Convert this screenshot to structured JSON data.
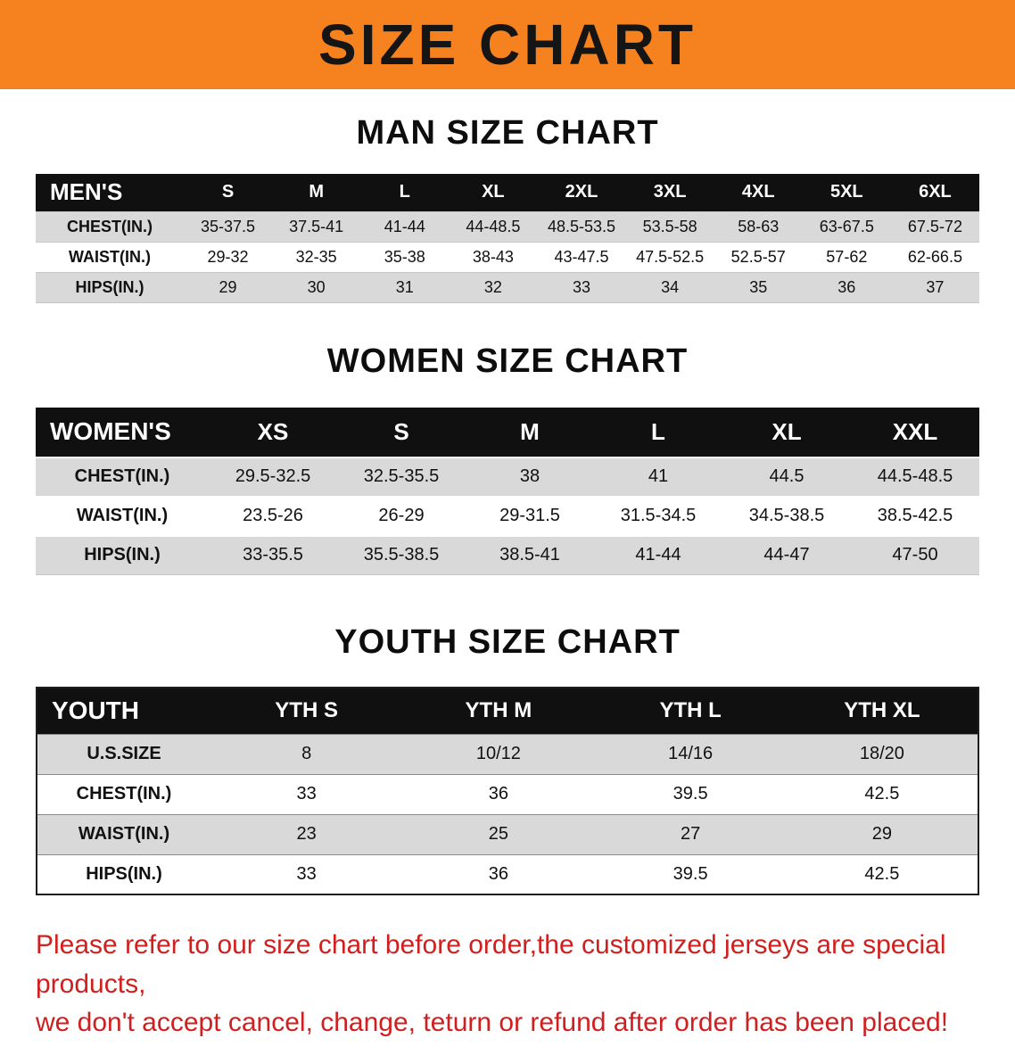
{
  "banner": {
    "title": "SIZE CHART",
    "background_color": "#f5821f",
    "text_color": "#151515"
  },
  "chart_data": [
    {
      "type": "table",
      "title": "MAN SIZE CHART",
      "corner": "MEN'S",
      "columns": [
        "S",
        "M",
        "L",
        "XL",
        "2XL",
        "3XL",
        "4XL",
        "5XL",
        "6XL"
      ],
      "rows": [
        {
          "label": "CHEST(IN.)",
          "values": [
            "35-37.5",
            "37.5-41",
            "41-44",
            "44-48.5",
            "48.5-53.5",
            "53.5-58",
            "58-63",
            "63-67.5",
            "67.5-72"
          ]
        },
        {
          "label": "WAIST(IN.)",
          "values": [
            "29-32",
            "32-35",
            "35-38",
            "38-43",
            "43-47.5",
            "47.5-52.5",
            "52.5-57",
            "57-62",
            "62-66.5"
          ]
        },
        {
          "label": "HIPS(IN.)",
          "values": [
            "29",
            "30",
            "31",
            "32",
            "33",
            "34",
            "35",
            "36",
            "37"
          ]
        }
      ]
    },
    {
      "type": "table",
      "title": "WOMEN SIZE CHART",
      "corner": "WOMEN'S",
      "columns": [
        "XS",
        "S",
        "M",
        "L",
        "XL",
        "XXL"
      ],
      "rows": [
        {
          "label": "CHEST(IN.)",
          "values": [
            "29.5-32.5",
            "32.5-35.5",
            "38",
            "41",
            "44.5",
            "44.5-48.5"
          ]
        },
        {
          "label": "WAIST(IN.)",
          "values": [
            "23.5-26",
            "26-29",
            "29-31.5",
            "31.5-34.5",
            "34.5-38.5",
            "38.5-42.5"
          ]
        },
        {
          "label": "HIPS(IN.)",
          "values": [
            "33-35.5",
            "35.5-38.5",
            "38.5-41",
            "41-44",
            "44-47",
            "47-50"
          ]
        }
      ]
    },
    {
      "type": "table",
      "title": "YOUTH SIZE CHART",
      "corner": "YOUTH",
      "columns": [
        "YTH S",
        "YTH M",
        "YTH L",
        "YTH XL"
      ],
      "rows": [
        {
          "label": "U.S.SIZE",
          "values": [
            "8",
            "10/12",
            "14/16",
            "18/20"
          ]
        },
        {
          "label": "CHEST(IN.)",
          "values": [
            "33",
            "36",
            "39.5",
            "42.5"
          ]
        },
        {
          "label": "WAIST(IN.)",
          "values": [
            "23",
            "25",
            "27",
            "29"
          ]
        },
        {
          "label": "HIPS(IN.)",
          "values": [
            "33",
            "36",
            "39.5",
            "42.5"
          ]
        }
      ]
    }
  ],
  "disclaimer": {
    "lines": [
      "Please refer to our size chart before order,the customized jerseys are special products,",
      "we don't accept cancel, change, teturn or refund after order has been placed!"
    ],
    "color": "#d01f1f"
  }
}
